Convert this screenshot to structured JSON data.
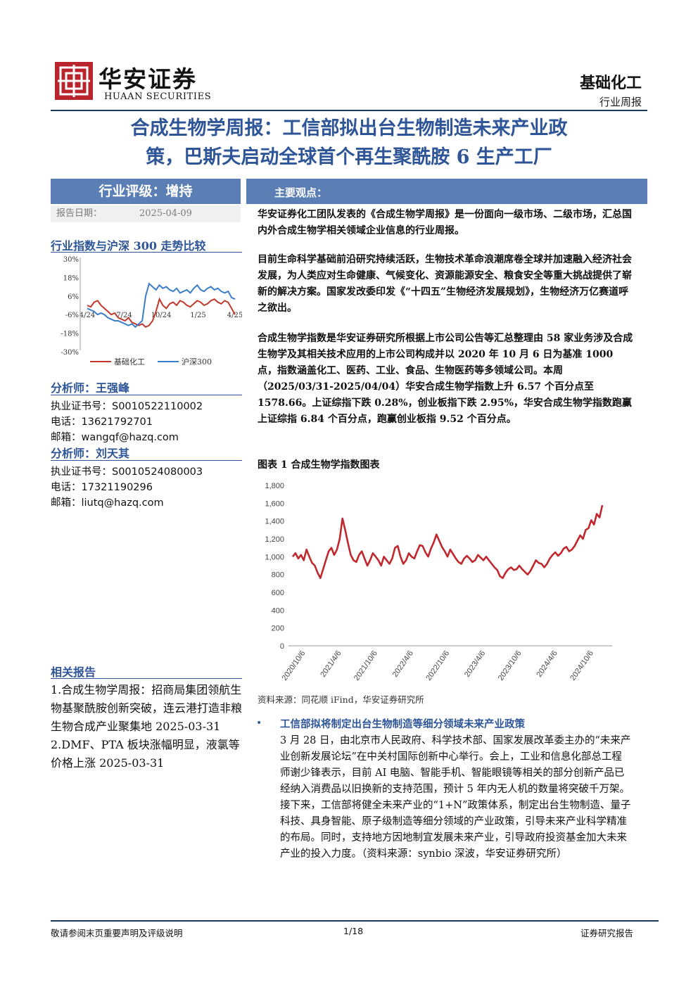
{
  "header": {
    "logo_cn": "华安证券",
    "logo_en": "HUAAN SECURITIES",
    "sector": "基础化工",
    "report_type": "行业周报"
  },
  "title": {
    "line1": "合成生物学周报：工信部拟出台生物制造未来产业政",
    "line2": "策，巴斯夫启动全球首个再生聚酰胺 6 生产工厂"
  },
  "left": {
    "rating": "行业评级：增持",
    "date_label": "报告日期：",
    "date_value": "2025-04-09",
    "index_head": "行业指数与沪深 300 走势比较",
    "mini_chart": {
      "type": "line",
      "y_ticks": [
        "30%",
        "18%",
        "6%",
        "-6%",
        "-18%",
        "-30%"
      ],
      "x_ticks": [
        "4/24",
        "7/24",
        "10/24",
        "1/25",
        "4/25"
      ],
      "ylim": [
        -30,
        30
      ],
      "legend": [
        "基础化工",
        "沪深300"
      ],
      "colors": [
        "#c0392b",
        "#3a7dc9"
      ]
    },
    "analyst1": {
      "head": "分析师：王强峰",
      "cert": "执业证书号：S0010522110002",
      "phone": "电话：13621792701",
      "email": "邮箱：wangqf@hazq.com"
    },
    "analyst2": {
      "head": "分析师：刘天其",
      "cert": "执业证书号：S0010524080003",
      "phone": "电话：17321190296",
      "email": "邮箱：liutq@hazq.com"
    },
    "related_head": "相关报告",
    "related": [
      "1.合成生物学周报：招商局集团领航生物基聚酰胺创新突破，连云港打造非粮生物合成产业聚集地 2025-03-31",
      "2.DMF、PTA 板块涨幅明显，液氯等价格上涨 2025-03-31"
    ]
  },
  "main": {
    "bar_label": "主要观点：",
    "p1": "华安证券化工团队发表的《合成生物学周报》是一份面向一级市场、二级市场，汇总国内外合成生物学相关领域企业信息的行业周报。",
    "p2": "目前生命科学基础前沿研究持续活跃，生物技术革命浪潮席卷全球并加速融入经济社会发展，为人类应对生命健康、气候变化、资源能源安全、粮食安全等重大挑战提供了崭新的解决方案。国家发改委印发《“十四五”生物经济发展规划》，生物经济万亿赛道呼之欲出。",
    "p3": "合成生物学指数是华安证券研究所根据上市公司公告等汇总整理由 58 家业务涉及合成生物学及其相关技术应用的上市公司构成并以 2020 年 10 月 6 日为基准 1000 点，指数涵盖化工、医药、工业、食品、生物医药等多领域公司。本周（2025/03/31-2025/04/04）华安合成生物学指数上升 6.57 个百分点至 1578.66。上证综指下跌 0.28%，创业板指下跌 2.95%，华安合成生物学指数跑赢上证综指 6.84 个百分点，跑赢创业板指 9.52 个百分点。",
    "fig_caption": "图表 1 合成生物学指数图表",
    "chart_source": "资料来源：同花顺 iFind，华安证券研究所",
    "bullet_head": "工信部拟将制定出台生物制造等细分领域未来产业政策",
    "bullet_body": "3 月 28 日，由北京市人民政府、科学技术部、国家发展改革委主办的“未来产业创新发展论坛”在中关村国际创新中心举行。会上，工业和信息化部总工程师谢少锋表示，目前 AI 电脑、智能手机、智能眼镜等相关的部分创新产品已经纳入消费品以旧换新的支持范围，预计 5 年内无人机的数量将突破千万架。接下来，工信部将健全未来产业的“1+N”政策体系，制定出台生物制造、量子科技、具身智能、原子级制造等细分领域的产业政策，引导未来产业科学精准的布局。同时，支持地方因地制宜发展未来产业，引导政府投资基金加大未来产业的投入力度。（资料来源：synbio 深波，华安证券研究所）"
  },
  "chart_data": {
    "type": "line",
    "title": "",
    "y_ticks": [
      "1,800",
      "1,600",
      "1,400",
      "1,200",
      "1,000",
      "800",
      "600",
      "400",
      "200",
      "0"
    ],
    "ylim": [
      0,
      1800
    ],
    "x_ticks": [
      "2020/10/6",
      "2021/4/6",
      "2021/10/6",
      "2022/4/6",
      "2022/10/6",
      "2023/4/6",
      "2023/10/6",
      "2024/4/6",
      "2024/10/6"
    ],
    "color": "#c0282d",
    "series": [
      {
        "values": [
          1000,
          1040,
          980,
          1020,
          960,
          1080,
          1000,
          930,
          900,
          820,
          760,
          860,
          960,
          1060,
          1100,
          1020,
          1080,
          1200,
          1430,
          1300,
          1150,
          1020,
          960,
          940,
          1020,
          1060,
          980,
          900,
          960,
          1040,
          1000,
          960,
          900,
          1000,
          960,
          920,
          980,
          1100,
          1120,
          1000,
          920,
          960,
          1040,
          1000,
          980,
          1060,
          1130,
          1120,
          1050,
          1000,
          1090,
          1160,
          1250,
          1180,
          1110,
          1060,
          1000,
          1080,
          1030,
          980,
          940,
          920,
          980,
          1010,
          980,
          940,
          960,
          1020,
          990,
          960,
          1000,
          960,
          920,
          880,
          850,
          780,
          760,
          820,
          860,
          880,
          850,
          860,
          900,
          860,
          830,
          800,
          840,
          900,
          960,
          930,
          920,
          880,
          920,
          980,
          1020,
          1050,
          1010,
          1040,
          1090,
          1110,
          1060,
          1080,
          1120,
          1180,
          1240,
          1200,
          1300,
          1320,
          1410,
          1360,
          1480,
          1440,
          1578
        ]
      }
    ]
  },
  "footer": {
    "left": "敬请参阅末页重要声明及评级说明",
    "page": "1/18",
    "right": "证券研究报告"
  }
}
